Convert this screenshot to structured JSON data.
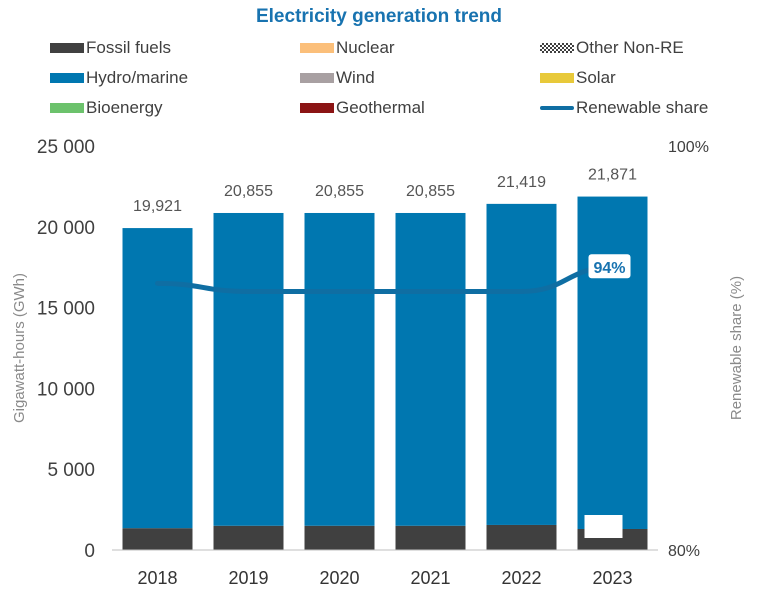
{
  "chart_data": {
    "type": "bar",
    "title": "Electricity generation trend",
    "categories": [
      "2018",
      "2019",
      "2020",
      "2021",
      "2022",
      "2023"
    ],
    "stack_series": [
      {
        "name": "Fossil fuels",
        "color": "#404040",
        "values": [
          1350,
          1500,
          1500,
          1500,
          1550,
          1300
        ]
      },
      {
        "name": "Hydro/marine",
        "color": "#0077b0",
        "values": [
          18571,
          19355,
          19355,
          19355,
          19869,
          20571
        ]
      }
    ],
    "totals": [
      19921,
      20855,
      20855,
      20855,
      21419,
      21871
    ],
    "total_labels": [
      "19,921",
      "20,855",
      "20,855",
      "20,855",
      "21,419",
      "21,871"
    ],
    "line_series": {
      "name": "Renewable share",
      "color": "#0f6ea3",
      "values": [
        93.2,
        92.8,
        92.8,
        92.8,
        92.8,
        94.0
      ],
      "end_label": "94%"
    },
    "legend": [
      {
        "name": "Fossil fuels",
        "type": "solid",
        "color": "#404040"
      },
      {
        "name": "Nuclear",
        "type": "solid",
        "color": "#fbbf7a"
      },
      {
        "name": "Other Non-RE",
        "type": "hatched",
        "color": "#404040"
      },
      {
        "name": "Hydro/marine",
        "type": "solid",
        "color": "#0077b0"
      },
      {
        "name": "Wind",
        "type": "solid",
        "color": "#a8a0a2"
      },
      {
        "name": "Solar",
        "type": "solid",
        "color": "#e8c93a"
      },
      {
        "name": "Bioenergy",
        "type": "solid",
        "color": "#6cc26c"
      },
      {
        "name": "Geothermal",
        "type": "solid",
        "color": "#8b1414"
      },
      {
        "name": "Renewable share",
        "type": "line",
        "color": "#0f6ea3"
      }
    ],
    "legend_placement": "top",
    "ylabel": "Gigawatt-hours (GWh)",
    "y2label": "Renewable share (%)",
    "ylim": [
      0,
      25000
    ],
    "y2lim": [
      80,
      100
    ],
    "yticks": [
      0,
      5000,
      10000,
      15000,
      20000,
      25000
    ],
    "ytick_labels": [
      "0",
      "5 000",
      "10 000",
      "15 000",
      "20 000",
      "25 000"
    ],
    "y2tick_labels": [
      "80%",
      "100%"
    ],
    "grid": false
  }
}
